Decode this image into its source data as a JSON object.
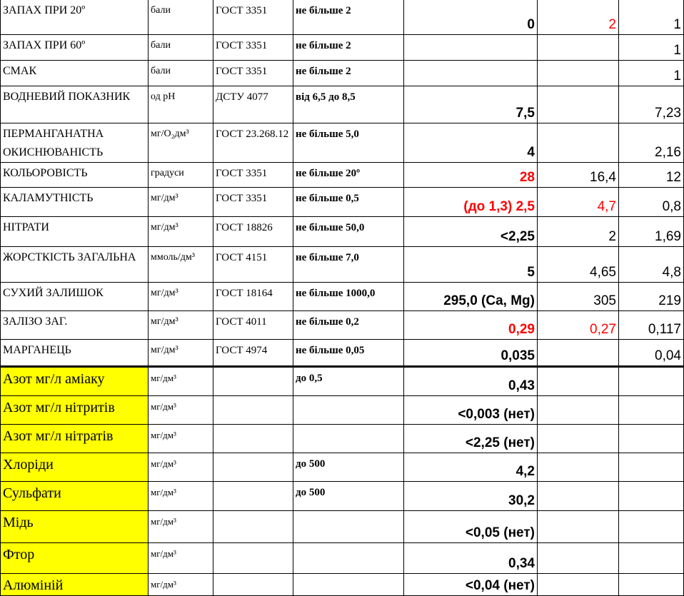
{
  "rows": [
    {
      "name": "ЗАПАХ  ПРИ  20º",
      "unit": "бали",
      "method": "ГОСТ   3351",
      "norm": "не більше  2",
      "v1": "0",
      "v2": "2",
      "v3": "1",
      "red": [
        false,
        true,
        false
      ]
    },
    {
      "name": "ЗАПАХ  ПРИ  60º",
      "unit": "бали",
      "method": "ГОСТ    3351",
      "norm": "не більше  2",
      "v1": "",
      "v2": "",
      "v3": "1",
      "red": [
        false,
        false,
        false
      ]
    },
    {
      "name": "СМАК",
      "unit": "бали",
      "method": "ГОСТ   3351",
      "norm": "не більше  2",
      "v1": "",
      "v2": "",
      "v3": "1",
      "red": [
        false,
        false,
        false
      ]
    },
    {
      "name": "ВОДНЕВИЙ ПОКАЗНИК",
      "unit": "од pH",
      "method": "ДСТУ  4077",
      "norm": "від 6,5 до 8,5",
      "v1": "7,5",
      "v2": "",
      "v3": "7,23",
      "red": [
        false,
        false,
        false
      ]
    },
    {
      "name": "ПЕРМАНГАНАТНА ОКИСНЮВАНІСТЬ",
      "unit": "мг/O₂дм³",
      "method": "ГОСТ 23.268.12",
      "norm": "не більше  5,0",
      "v1": "4",
      "v2": "",
      "v3": "2,16",
      "red": [
        false,
        false,
        false
      ]
    },
    {
      "name": "КОЛЬОРОВІСТЬ",
      "unit": "градуси",
      "method": "ГОСТ  3351",
      "norm": "не більше 20º",
      "v1": "28",
      "v2": "16,4",
      "v3": "12",
      "red": [
        true,
        false,
        false
      ]
    },
    {
      "name": "КАЛАМУТНІСТЬ",
      "unit": "мг/дм³",
      "method": "ГОСТ  3351",
      "norm": "не більше  0,5",
      "v1": "(до 1,3)   2,5",
      "v2": "4,7",
      "v3": "0,8",
      "red": [
        true,
        true,
        false
      ]
    },
    {
      "name": "НІТРАТИ",
      "unit": "мг/дм³",
      "method": "ГОСТ  18826",
      "norm": "не більше  50,0",
      "v1": "<2,25",
      "v2": "2",
      "v3": "1,69",
      "red": [
        false,
        false,
        false
      ]
    },
    {
      "name": "ЖОРСТКІСТЬ ЗАГАЛЬНА",
      "unit": "ммоль/дм³",
      "method": "ГОСТ  4151",
      "norm": "не більше 7,0",
      "v1": "5",
      "v2": "4,65",
      "v3": "4,8",
      "red": [
        false,
        false,
        false
      ]
    },
    {
      "name": "СУХИЙ ЗАЛИШОК",
      "unit": "мг/дм³",
      "method": "ГОСТ  18164",
      "norm": "не більше 1000,0",
      "v1": "295,0  (Ca, Mg)",
      "v2": "305",
      "v3": "219",
      "red": [
        false,
        false,
        false
      ]
    },
    {
      "name": "ЗАЛІЗО ЗАГ.",
      "unit": "мг/дм³",
      "method": "ГОСТ   4011",
      "norm": "не більше 0,2",
      "v1": "0,29",
      "v2": "0,27",
      "v3": "0,117",
      "red": [
        true,
        true,
        false
      ]
    },
    {
      "name": "МАРГАНЕЦЬ",
      "unit": "мг/дм³",
      "method": "ГОСТ   4974",
      "norm": "не більше 0,05",
      "v1": "0,035",
      "v2": "",
      "v3": "0,04",
      "red": [
        false,
        false,
        false
      ]
    },
    {
      "name": "Азот мг/л аміаку",
      "unit": "мг/дм³",
      "method": "",
      "norm": "до 0,5",
      "v1": "0,43",
      "v2": "",
      "v3": "",
      "red": [
        false,
        false,
        false
      ],
      "yellow": true
    },
    {
      "name": "Азот мг/л нітритів",
      "unit": "мг/дм³",
      "method": "",
      "norm": "",
      "v1": "<0,003 (нет)",
      "v2": "",
      "v3": "",
      "red": [
        false,
        false,
        false
      ],
      "yellow": true
    },
    {
      "name": "Азот мг/л нітратів",
      "unit": "мг/дм³",
      "method": "",
      "norm": "",
      "v1": "<2,25 (нет)",
      "v2": "",
      "v3": "",
      "red": [
        false,
        false,
        false
      ],
      "yellow": true
    },
    {
      "name": "Хлоріди",
      "unit": "мг/дм³",
      "method": "",
      "norm": "до 500",
      "v1": "4,2",
      "v2": "",
      "v3": "",
      "red": [
        false,
        false,
        false
      ],
      "yellow": true
    },
    {
      "name": "Сульфати",
      "unit": "мг/дм³",
      "method": "",
      "norm": "до 500",
      "v1": "30,2",
      "v2": "",
      "v3": "",
      "red": [
        false,
        false,
        false
      ],
      "yellow": true
    },
    {
      "name": "Мідь",
      "unit": "мг/дм³",
      "method": "",
      "norm": "",
      "v1": "<0,05 (нет)",
      "v2": "",
      "v3": "",
      "red": [
        false,
        false,
        false
      ],
      "yellow": true
    },
    {
      "name": "Фтор",
      "unit": "мг/дм³",
      "method": "",
      "norm": "",
      "v1": "0,34",
      "v2": "",
      "v3": "",
      "red": [
        false,
        false,
        false
      ],
      "yellow": true
    },
    {
      "name": "Алюміній",
      "unit": "мг/дм³",
      "method": "",
      "norm": "",
      "v1": "<0,04 (нет)",
      "v2": "",
      "v3": "",
      "red": [
        false,
        false,
        false
      ],
      "yellow": true
    }
  ],
  "colors": {
    "highlight": "#ffff00",
    "exceed": "#ff0000"
  }
}
